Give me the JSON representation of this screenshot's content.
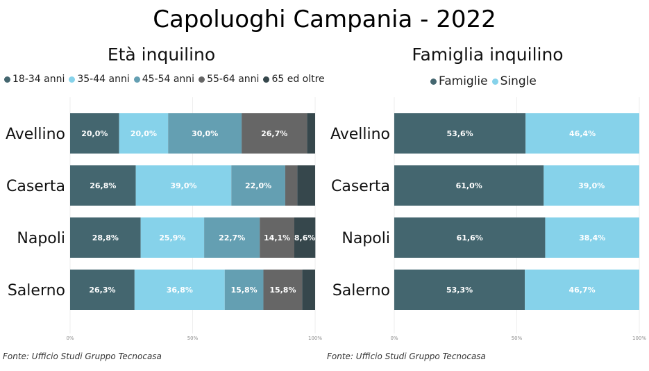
{
  "title": "Capoluoghi Campania - 2022",
  "source": "Fonte: Ufficio Studi Gruppo Tecnocasa",
  "chart_data": [
    {
      "type": "bar",
      "orientation": "horizontal",
      "stacked": "percent",
      "title": "Età inquilino",
      "categories": [
        "Avellino",
        "Caserta",
        "Napoli",
        "Salerno"
      ],
      "series": [
        {
          "name": "18-34 anni",
          "color": "#44666f",
          "values": [
            20.0,
            26.8,
            28.8,
            26.3
          ]
        },
        {
          "name": "35-44 anni",
          "color": "#86d2ea",
          "values": [
            20.0,
            39.0,
            25.9,
            36.8
          ]
        },
        {
          "name": "45-54 anni",
          "color": "#649fb2",
          "values": [
            30.0,
            22.0,
            22.7,
            15.8
          ]
        },
        {
          "name": "55-64 anni",
          "color": "#666666",
          "values": [
            26.7,
            4.9,
            14.1,
            15.8
          ]
        },
        {
          "name": "65 ed oltre",
          "color": "#36474c",
          "values": [
            3.3,
            7.3,
            8.6,
            5.3
          ]
        }
      ],
      "label_min": 8,
      "xticks": [
        "0%",
        "50%",
        "100%"
      ],
      "legend": "top"
    },
    {
      "type": "bar",
      "orientation": "horizontal",
      "stacked": "percent",
      "title": "Famiglia inquilino",
      "categories": [
        "Avellino",
        "Caserta",
        "Napoli",
        "Salerno"
      ],
      "series": [
        {
          "name": "Famiglie",
          "color": "#44666f",
          "values": [
            53.6,
            61.0,
            61.6,
            53.3
          ]
        },
        {
          "name": "Single",
          "color": "#86d2ea",
          "values": [
            46.4,
            39.0,
            38.4,
            46.7
          ]
        }
      ],
      "label_min": 8,
      "xticks": [
        "0%",
        "50%",
        "100%"
      ],
      "legend": "top"
    }
  ]
}
